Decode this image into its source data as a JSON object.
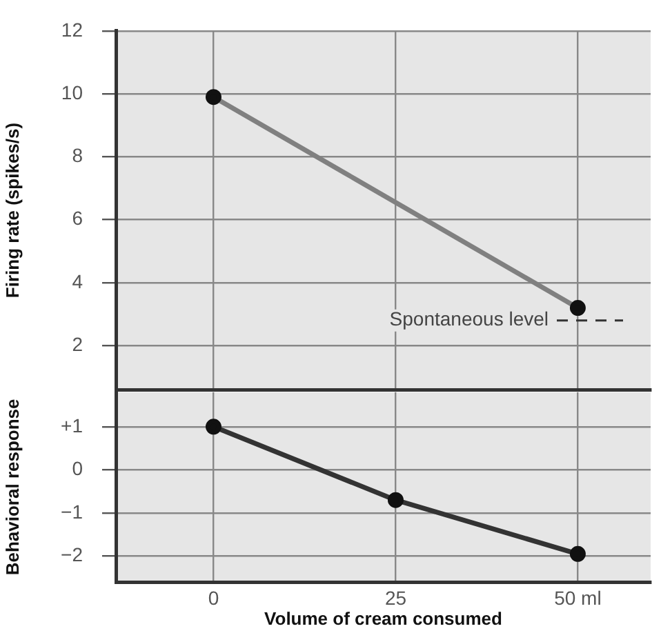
{
  "chart_data": [
    {
      "type": "line",
      "ylabel": "Firing rate (spikes/s)",
      "x": [
        0,
        50
      ],
      "xlim": [
        -13.4,
        60
      ],
      "xticks": [
        {
          "value": 0,
          "label": null
        },
        {
          "value": 25,
          "label": null
        },
        {
          "value": 50,
          "label": null
        }
      ],
      "ylim": [
        0.6,
        12
      ],
      "yticks": [
        2,
        4,
        6,
        8,
        10,
        12
      ],
      "series": [
        {
          "color": "#808080",
          "values": [
            9.9,
            3.2
          ]
        }
      ],
      "ref_lines": [
        {
          "axis": "y",
          "value": 2.8,
          "label": "Spontaneous level",
          "line_style": "dashed",
          "color": "#333333"
        }
      ],
      "marker": "circle",
      "grid": true,
      "tick_labels": "y"
    },
    {
      "type": "line",
      "xlabel": "Volume of cream consumed",
      "ylabel": "Behavioral response",
      "x": [
        0,
        25,
        50
      ],
      "xlim": [
        -13.4,
        60
      ],
      "xticks": [
        0,
        25,
        {
          "value": 50,
          "label": "50 ml"
        }
      ],
      "ylim": [
        -2.6,
        1.8
      ],
      "yticks": [
        {
          "value": 1,
          "label": "+1"
        },
        0,
        {
          "value": -1,
          "label": "−1"
        },
        {
          "value": -2,
          "label": "−2"
        }
      ],
      "series": [
        {
          "color": "#333333",
          "values": [
            1.0,
            -0.7,
            -1.95
          ]
        }
      ],
      "marker": "circle",
      "grid": true
    }
  ]
}
